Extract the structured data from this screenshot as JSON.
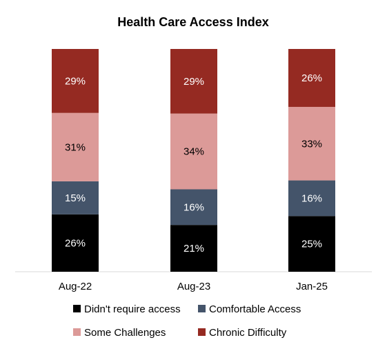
{
  "chart_data": {
    "type": "bar",
    "stacked": true,
    "title": "Health Care Access Index",
    "categories": [
      "Aug-22",
      "Aug-23",
      "Jan-25"
    ],
    "series": [
      {
        "name": "Didn't require access",
        "color": "#000000",
        "label_color": "#ffffff",
        "values": [
          26,
          21,
          25
        ],
        "labels": [
          "26%",
          "21%",
          "25%"
        ]
      },
      {
        "name": "Comfortable Access",
        "color": "#44546a",
        "label_color": "#ffffff",
        "values": [
          15,
          16,
          16
        ],
        "labels": [
          "15%",
          "16%",
          "16%"
        ]
      },
      {
        "name": "Some Challenges",
        "color": "#dc9a98",
        "label_color": "#000000",
        "values": [
          31,
          34,
          33
        ],
        "labels": [
          "31%",
          "34%",
          "33%"
        ]
      },
      {
        "name": "Chronic Difficulty",
        "color": "#952a22",
        "label_color": "#ffffff",
        "values": [
          29,
          29,
          26
        ],
        "labels": [
          "29%",
          "29%",
          "26%"
        ]
      }
    ],
    "xlabel": "",
    "ylabel": "",
    "grid": false,
    "legend_position": "bottom"
  }
}
